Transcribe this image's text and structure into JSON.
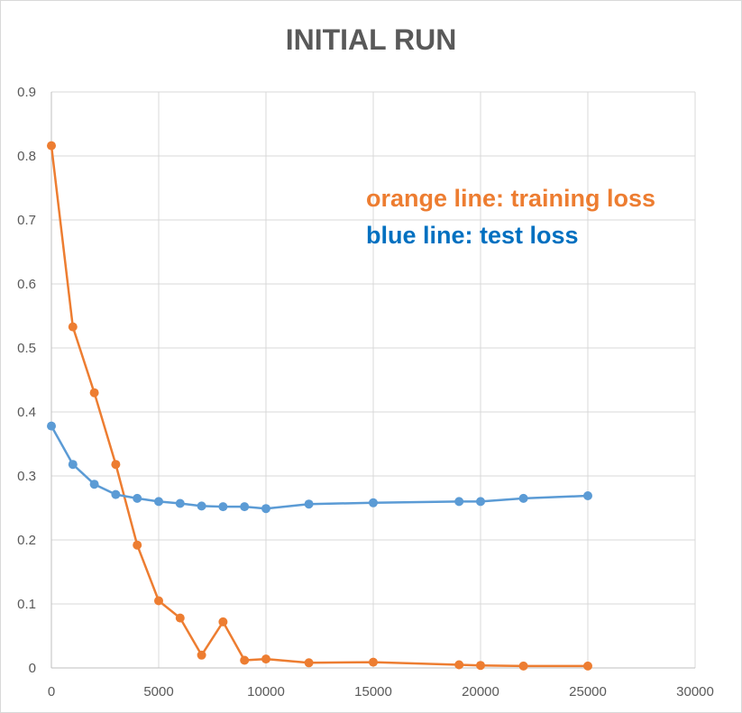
{
  "chart_data": {
    "type": "line",
    "title": "INITIAL RUN",
    "xlabel": "",
    "ylabel": "",
    "xlim": [
      0,
      30000
    ],
    "ylim": [
      0,
      0.9
    ],
    "x_ticks": [
      "0",
      "5000",
      "10000",
      "15000",
      "20000",
      "25000",
      "30000"
    ],
    "y_ticks": [
      "0",
      "0.1",
      "0.2",
      "0.3",
      "0.4",
      "0.5",
      "0.6",
      "0.7",
      "0.8",
      "0.9"
    ],
    "grid": true,
    "annotations": [
      {
        "text": "orange line: training loss",
        "color": "#ed7d31"
      },
      {
        "text": "blue line: test loss",
        "color": "#0070c0"
      }
    ],
    "series": [
      {
        "color": "#ed7d31",
        "x": [
          0,
          1000,
          2000,
          3000,
          4000,
          5000,
          6000,
          7000,
          8000,
          9000,
          10000,
          12000,
          15000,
          19000,
          20000,
          22000,
          25000
        ],
        "y": [
          0.816,
          0.533,
          0.43,
          0.318,
          0.192,
          0.105,
          0.078,
          0.02,
          0.072,
          0.012,
          0.014,
          0.008,
          0.009,
          0.005,
          0.004,
          0.003,
          0.003
        ]
      },
      {
        "color": "#5b9bd5",
        "x": [
          0,
          1000,
          2000,
          3000,
          4000,
          5000,
          6000,
          7000,
          8000,
          9000,
          10000,
          12000,
          15000,
          19000,
          20000,
          22000,
          25000
        ],
        "y": [
          0.378,
          0.318,
          0.287,
          0.271,
          0.265,
          0.26,
          0.257,
          0.253,
          0.252,
          0.252,
          0.249,
          0.256,
          0.258,
          0.26,
          0.26,
          0.265,
          0.269
        ]
      }
    ]
  }
}
